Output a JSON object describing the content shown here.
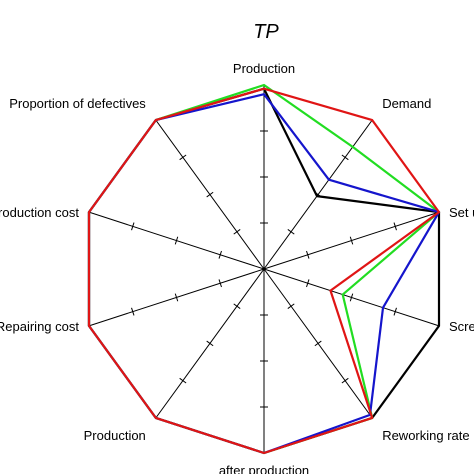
{
  "chart_data": {
    "type": "radar",
    "title": "TP",
    "axes": [
      "Production cost",
      "Proportion of defectives",
      "Production",
      "Demand",
      "Set up",
      "Screening rate",
      "Reworking rate",
      "after production",
      "Production",
      "Repairing cost"
    ],
    "ticks": [
      0.25,
      0.5,
      0.75
    ],
    "range": [
      0,
      1
    ],
    "grid": true,
    "legend": "none",
    "series": [
      {
        "color": "#000000",
        "values": [
          1.0,
          1.0,
          0.98,
          0.49,
          1.0,
          1.0,
          1.0,
          1.0,
          1.0,
          1.0
        ]
      },
      {
        "color": "#22dd22",
        "values": [
          1.0,
          1.0,
          1.0,
          0.82,
          1.0,
          0.45,
          1.0,
          1.0,
          1.0,
          1.0
        ]
      },
      {
        "color": "#1515cc",
        "values": [
          1.0,
          1.0,
          0.95,
          0.6,
          1.0,
          0.68,
          0.98,
          1.0,
          1.0,
          1.0
        ]
      },
      {
        "color": "#e01515",
        "values": [
          1.0,
          1.0,
          0.98,
          1.0,
          1.0,
          0.38,
          1.0,
          1.0,
          1.0,
          1.0
        ]
      }
    ]
  }
}
